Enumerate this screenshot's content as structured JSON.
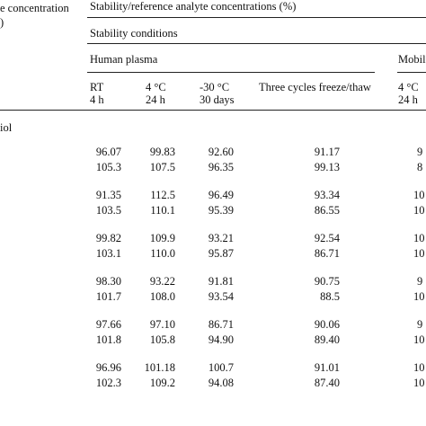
{
  "header": {
    "left_line1": "e concentration",
    "left_line2": ")",
    "main_title": "Stability/reference analyte concentrations (%)",
    "stability_conditions": "Stability conditions",
    "group_human_plasma": "Human plasma",
    "group_mobile": "Mobil",
    "col_rt_line1": "RT",
    "col_rt_line2": "4 h",
    "col_4c_line1": "4 °C",
    "col_4c_line2": "24 h",
    "col_m30_line1": "-30 °C",
    "col_m30_line2": "30 days",
    "col_freeze": "Three cycles freeze/thaw",
    "col_mob_4c_line1": "4 °C",
    "col_mob_4c_line2": "24 h"
  },
  "row_label": "iol",
  "rows": [
    {
      "rt": "96.07",
      "c4": "99.83",
      "m30": "92.60",
      "ft": "91.17",
      "mob": "9"
    },
    {
      "rt": "105.3",
      "c4": "107.5",
      "m30": "96.35",
      "ft": "99.13",
      "mob": "8"
    },
    {
      "rt": "91.35",
      "c4": "112.5",
      "m30": "96.49",
      "ft": "93.34",
      "mob": "10"
    },
    {
      "rt": "103.5",
      "c4": "110.1",
      "m30": "95.39",
      "ft": "86.55",
      "mob": "10"
    },
    {
      "rt": "99.82",
      "c4": "109.9",
      "m30": "93.21",
      "ft": "92.54",
      "mob": "10"
    },
    {
      "rt": "103.1",
      "c4": "110.0",
      "m30": "95.87",
      "ft": "86.71",
      "mob": "10"
    },
    {
      "rt": "98.30",
      "c4": "93.22",
      "m30": "91.81",
      "ft": "90.75",
      "mob": "9"
    },
    {
      "rt": "101.7",
      "c4": "108.0",
      "m30": "93.54",
      "ft": "88.5",
      "mob": "10"
    },
    {
      "rt": "97.66",
      "c4": "97.10",
      "m30": "86.71",
      "ft": "90.06",
      "mob": "9"
    },
    {
      "rt": "101.8",
      "c4": "105.8",
      "m30": "94.90",
      "ft": "89.40",
      "mob": "10"
    },
    {
      "rt": "96.96",
      "c4": "101.18",
      "m30": "100.7",
      "ft": "91.01",
      "mob": "10"
    },
    {
      "rt": "102.3",
      "c4": "109.2",
      "m30": "94.08",
      "ft": "87.40",
      "mob": "10"
    }
  ]
}
